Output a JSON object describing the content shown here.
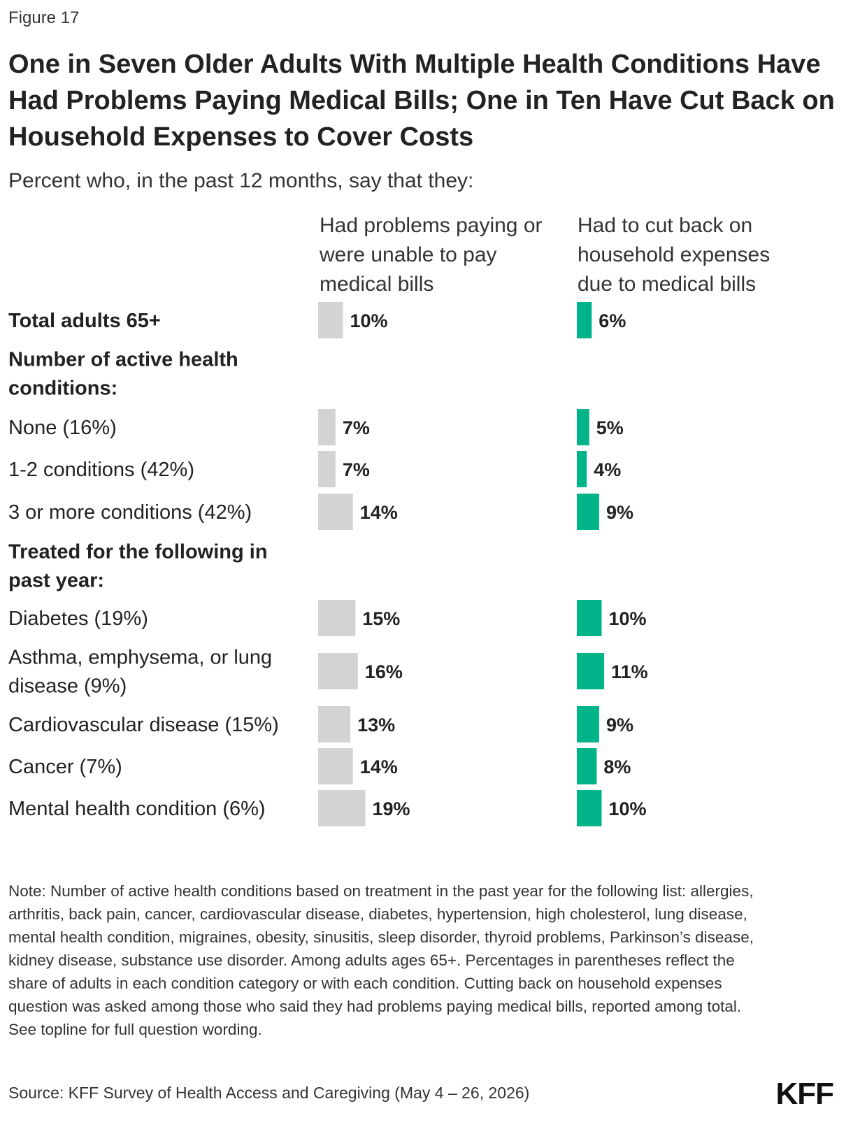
{
  "figure_label": "Figure 17",
  "footer": {
    "note": "Note: Number of active health conditions based on treatment in the past year for the following list: allergies, arthritis, back pain, cancer, cardiovascular disease, diabetes, hypertension, high cholesterol, lung disease, mental health condition, migraines, obesity, sinusitis, sleep disorder, thyroid problems, Parkinson’s disease, kidney disease, substance use disorder. Among adults ages 65+. Percentages in parentheses reflect the share of adults in each condition category or with each condition. Cutting back on household expenses question was asked among those who said they had problems paying medical bills, reported among total. See topline for full question wording.",
    "source": "Source: KFF Survey of Health Access and Caregiving (May 4 – 26, 2026)",
    "logo": "KFF"
  },
  "colors": {
    "series_1": "#d3d3d3",
    "series_2": "#00b48a"
  },
  "chart_data": {
    "type": "bar",
    "orientation": "horizontal",
    "title": "One in Seven Older Adults With Multiple Health Conditions Have Had Problems Paying Medical Bills; One in Ten Have Cut Back on Household Expenses to Cover Costs",
    "subtitle": "Percent who, in the past 12 months, say that they:",
    "series": [
      {
        "name": "Had problems paying or were unable to pay medical bills",
        "color": "#d3d3d3"
      },
      {
        "name": "Had to cut back on household expenses due to medical bills",
        "color": "#00b48a"
      }
    ],
    "rows": [
      {
        "label": "Total adults 65+",
        "kind": "group",
        "values": [
          10,
          6
        ],
        "value_labels": [
          "10%",
          "6%"
        ]
      },
      {
        "label": "Number of active health conditions:",
        "kind": "header"
      },
      {
        "label": "None (16%)",
        "kind": "item",
        "values": [
          7,
          5
        ],
        "value_labels": [
          "7%",
          "5%"
        ]
      },
      {
        "label": "1-2 conditions (42%)",
        "kind": "item",
        "values": [
          7,
          4
        ],
        "value_labels": [
          "7%",
          "4%"
        ]
      },
      {
        "label": "3 or more conditions (42%)",
        "kind": "item",
        "values": [
          14,
          9
        ],
        "value_labels": [
          "14%",
          "9%"
        ]
      },
      {
        "label": "Treated for the following in past year:",
        "kind": "header"
      },
      {
        "label": "Diabetes (19%)",
        "kind": "item",
        "values": [
          15,
          10
        ],
        "value_labels": [
          "15%",
          "10%"
        ]
      },
      {
        "label": "Asthma, emphysema, or lung disease (9%)",
        "kind": "item",
        "values": [
          16,
          11
        ],
        "value_labels": [
          "16%",
          "11%"
        ]
      },
      {
        "label": "Cardiovascular disease (15%)",
        "kind": "item",
        "values": [
          13,
          9
        ],
        "value_labels": [
          "13%",
          "9%"
        ]
      },
      {
        "label": "Cancer (7%)",
        "kind": "item",
        "values": [
          14,
          8
        ],
        "value_labels": [
          "14%",
          "8%"
        ]
      },
      {
        "label": "Mental health condition (6%)",
        "kind": "item",
        "values": [
          19,
          10
        ],
        "value_labels": [
          "19%",
          "10%"
        ]
      }
    ]
  }
}
